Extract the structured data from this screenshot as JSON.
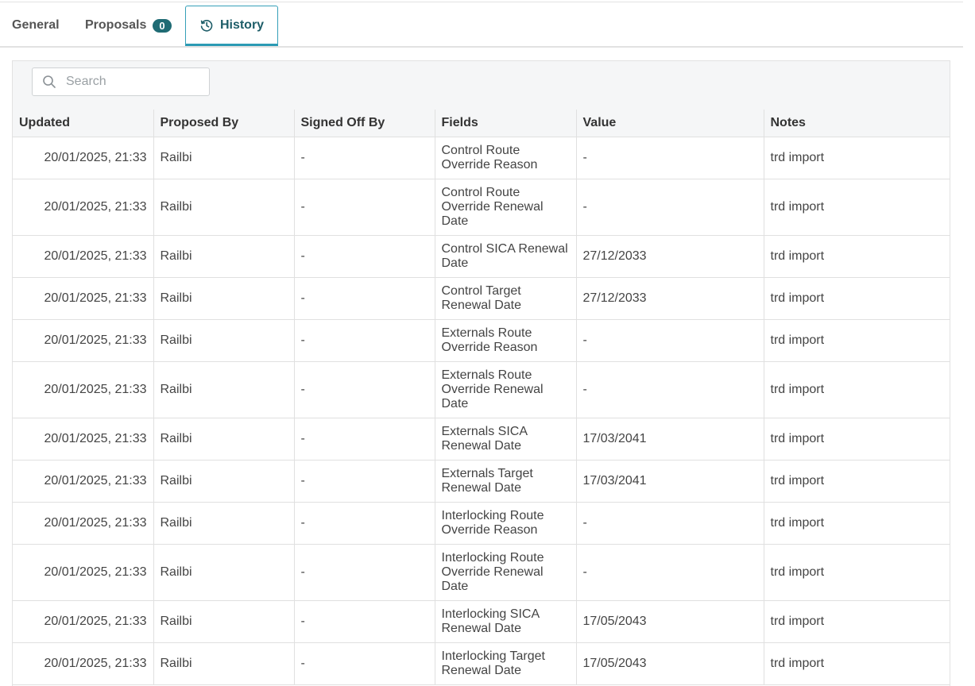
{
  "tabs": {
    "general": "General",
    "proposals": "Proposals",
    "proposals_count": "0",
    "history": "History"
  },
  "search": {
    "placeholder": "Search"
  },
  "table": {
    "headers": [
      "Updated",
      "Proposed By",
      "Signed Off By",
      "Fields",
      "Value",
      "Notes"
    ],
    "rows": [
      {
        "updated": "20/01/2025, 21:33",
        "proposed_by": "Railbi",
        "signed_off_by": "-",
        "field": "Control Route Override Reason",
        "value": "-",
        "notes": "trd import"
      },
      {
        "updated": "20/01/2025, 21:33",
        "proposed_by": "Railbi",
        "signed_off_by": "-",
        "field": "Control Route Override Renewal Date",
        "value": "-",
        "notes": "trd import"
      },
      {
        "updated": "20/01/2025, 21:33",
        "proposed_by": "Railbi",
        "signed_off_by": "-",
        "field": "Control SICA Renewal Date",
        "value": "27/12/2033",
        "notes": "trd import"
      },
      {
        "updated": "20/01/2025, 21:33",
        "proposed_by": "Railbi",
        "signed_off_by": "-",
        "field": "Control Target Renewal Date",
        "value": "27/12/2033",
        "notes": "trd import"
      },
      {
        "updated": "20/01/2025, 21:33",
        "proposed_by": "Railbi",
        "signed_off_by": "-",
        "field": "Externals Route Override Reason",
        "value": "-",
        "notes": "trd import"
      },
      {
        "updated": "20/01/2025, 21:33",
        "proposed_by": "Railbi",
        "signed_off_by": "-",
        "field": "Externals Route Override Renewal Date",
        "value": "-",
        "notes": "trd import"
      },
      {
        "updated": "20/01/2025, 21:33",
        "proposed_by": "Railbi",
        "signed_off_by": "-",
        "field": "Externals SICA Renewal Date",
        "value": "17/03/2041",
        "notes": "trd import"
      },
      {
        "updated": "20/01/2025, 21:33",
        "proposed_by": "Railbi",
        "signed_off_by": "-",
        "field": "Externals Target Renewal Date",
        "value": "17/03/2041",
        "notes": "trd import"
      },
      {
        "updated": "20/01/2025, 21:33",
        "proposed_by": "Railbi",
        "signed_off_by": "-",
        "field": "Interlocking Route Override Reason",
        "value": "-",
        "notes": "trd import"
      },
      {
        "updated": "20/01/2025, 21:33",
        "proposed_by": "Railbi",
        "signed_off_by": "-",
        "field": "Interlocking Route Override Renewal Date",
        "value": "-",
        "notes": "trd import"
      },
      {
        "updated": "20/01/2025, 21:33",
        "proposed_by": "Railbi",
        "signed_off_by": "-",
        "field": "Interlocking SICA Renewal Date",
        "value": "17/05/2043",
        "notes": "trd import"
      },
      {
        "updated": "20/01/2025, 21:33",
        "proposed_by": "Railbi",
        "signed_off_by": "-",
        "field": "Interlocking Target Renewal Date",
        "value": "17/05/2043",
        "notes": "trd import"
      }
    ]
  }
}
